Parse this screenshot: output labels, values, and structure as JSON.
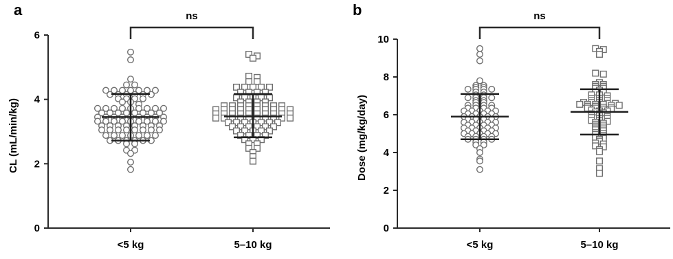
{
  "chart_data": [
    {
      "panel": "a",
      "type": "scatter",
      "ylabel": "CL (mL/min/kg)",
      "xlabel": "",
      "ylim": [
        0,
        6
      ],
      "yticks": [
        0,
        2,
        4,
        6
      ],
      "categories": [
        "<5 kg",
        "5–10 kg"
      ],
      "significance": "ns",
      "series": [
        {
          "category": "<5 kg",
          "marker": "circle",
          "mean": 3.45,
          "sd_low": 2.72,
          "sd_high": 4.17,
          "values": [
            5.47,
            5.23,
            4.63,
            4.45,
            4.45,
            4.28,
            4.28,
            4.28,
            4.28,
            4.28,
            4.28,
            4.28,
            4.15,
            4.15,
            4.15,
            4.15,
            4.15,
            4.15,
            4.02,
            4.02,
            4.02,
            4.02,
            3.92,
            3.92,
            3.85,
            3.72,
            3.72,
            3.72,
            3.72,
            3.72,
            3.72,
            3.72,
            3.72,
            3.72,
            3.58,
            3.58,
            3.58,
            3.58,
            3.58,
            3.58,
            3.58,
            3.58,
            3.45,
            3.45,
            3.45,
            3.45,
            3.45,
            3.45,
            3.45,
            3.45,
            3.45,
            3.32,
            3.32,
            3.32,
            3.32,
            3.32,
            3.32,
            3.32,
            3.32,
            3.32,
            3.18,
            3.18,
            3.18,
            3.18,
            3.18,
            3.18,
            3.18,
            3.18,
            3.05,
            3.05,
            3.05,
            3.05,
            3.05,
            3.05,
            3.05,
            3.05,
            2.88,
            2.88,
            2.88,
            2.88,
            2.88,
            2.88,
            2.88,
            2.72,
            2.72,
            2.72,
            2.72,
            2.72,
            2.72,
            2.62,
            2.62,
            2.42,
            2.42,
            2.32,
            2.05,
            1.82
          ]
        },
        {
          "category": "5–10 kg",
          "marker": "square",
          "mean": 3.47,
          "sd_low": 2.82,
          "sd_high": 4.17,
          "values": [
            5.4,
            5.35,
            5.28,
            4.72,
            4.68,
            4.55,
            4.55,
            4.38,
            4.38,
            4.38,
            4.38,
            4.38,
            4.22,
            4.22,
            4.22,
            4.22,
            4.05,
            4.05,
            4.05,
            4.05,
            4.05,
            3.92,
            3.92,
            3.92,
            3.92,
            3.8,
            3.8,
            3.8,
            3.8,
            3.8,
            3.8,
            3.8,
            3.8,
            3.68,
            3.68,
            3.68,
            3.68,
            3.68,
            3.68,
            3.68,
            3.68,
            3.68,
            3.68,
            3.55,
            3.55,
            3.55,
            3.55,
            3.55,
            3.55,
            3.55,
            3.55,
            3.55,
            3.55,
            3.42,
            3.42,
            3.42,
            3.42,
            3.42,
            3.42,
            3.42,
            3.42,
            3.42,
            3.42,
            3.28,
            3.28,
            3.28,
            3.28,
            3.28,
            3.28,
            3.28,
            3.15,
            3.15,
            3.15,
            3.15,
            3.15,
            3.15,
            3.02,
            3.02,
            3.02,
            3.02,
            3.02,
            2.88,
            2.88,
            2.88,
            2.88,
            2.75,
            2.75,
            2.75,
            2.62,
            2.62,
            2.48,
            2.48,
            2.35,
            2.22,
            2.08
          ]
        }
      ]
    },
    {
      "panel": "b",
      "type": "scatter",
      "ylabel": "Dose (mg/kg/day)",
      "xlabel": "",
      "ylim": [
        0,
        10
      ],
      "yticks": [
        0,
        2,
        4,
        6,
        8,
        10
      ],
      "categories": [
        "<5 kg",
        "5–10 kg"
      ],
      "significance": "ns",
      "series": [
        {
          "category": "<5 kg",
          "marker": "circle",
          "mean": 5.9,
          "sd_low": 4.7,
          "sd_high": 7.1,
          "values": [
            9.5,
            9.2,
            8.85,
            7.8,
            7.55,
            7.55,
            7.45,
            7.45,
            7.35,
            7.35,
            7.35,
            7.35,
            7.2,
            7.2,
            7.05,
            7.05,
            6.9,
            6.9,
            6.9,
            6.9,
            6.75,
            6.75,
            6.65,
            6.65,
            6.5,
            6.5,
            6.5,
            6.5,
            6.35,
            6.35,
            6.35,
            6.35,
            6.2,
            6.2,
            6.2,
            6.2,
            6.2,
            6.05,
            6.05,
            6.05,
            6.05,
            5.9,
            5.9,
            5.9,
            5.9,
            5.9,
            5.75,
            5.75,
            5.75,
            5.75,
            5.6,
            5.6,
            5.6,
            5.6,
            5.6,
            5.45,
            5.45,
            5.45,
            5.45,
            5.3,
            5.3,
            5.3,
            5.3,
            5.3,
            5.15,
            5.15,
            5.15,
            5.15,
            5.0,
            5.0,
            5.0,
            5.0,
            5.0,
            4.85,
            4.85,
            4.85,
            4.85,
            4.7,
            4.7,
            4.7,
            4.7,
            4.55,
            4.55,
            4.4,
            4.4,
            4.2,
            4.0,
            3.65,
            3.55,
            3.1
          ]
        },
        {
          "category": "5–10 kg",
          "marker": "square",
          "mean": 6.15,
          "sd_low": 4.95,
          "sd_high": 7.35,
          "values": [
            9.5,
            9.45,
            9.35,
            9.2,
            8.2,
            8.15,
            7.7,
            7.6,
            7.6,
            7.5,
            7.5,
            7.4,
            7.4,
            7.3,
            7.2,
            7.2,
            7.05,
            7.05,
            7.0,
            6.85,
            6.85,
            6.85,
            6.75,
            6.75,
            6.75,
            6.65,
            6.65,
            6.65,
            6.6,
            6.6,
            6.55,
            6.55,
            6.55,
            6.55,
            6.5,
            6.5,
            6.45,
            6.45,
            6.4,
            6.4,
            6.35,
            6.35,
            6.3,
            6.3,
            6.25,
            6.2,
            6.2,
            6.15,
            6.1,
            6.05,
            6.05,
            6.0,
            5.95,
            5.95,
            5.9,
            5.85,
            5.8,
            5.8,
            5.7,
            5.7,
            5.65,
            5.6,
            5.55,
            5.5,
            5.45,
            5.4,
            5.35,
            5.3,
            5.25,
            5.2,
            5.15,
            5.05,
            5.0,
            4.95,
            4.9,
            4.8,
            4.75,
            4.7,
            4.6,
            4.5,
            4.45,
            4.35,
            4.3,
            4.15,
            4.05,
            3.55,
            3.15,
            2.9
          ]
        }
      ]
    }
  ]
}
